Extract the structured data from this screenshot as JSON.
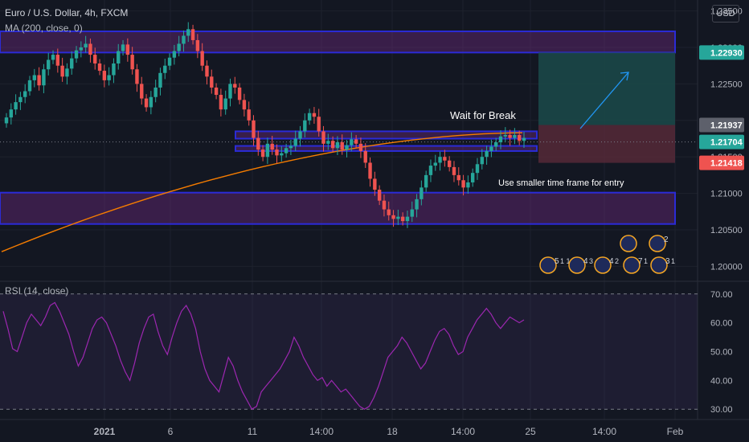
{
  "header": {
    "symbol": "Euro / U.S. Dollar, 4h, FXCM",
    "ma_label": "MA (200, close, 0)",
    "rsi_label": "RSI (14, close)",
    "currency": "USD"
  },
  "colors": {
    "background": "#131722",
    "up": "#26a69a",
    "down": "#ef5350",
    "ma": "#f57c00",
    "zone_fill": "#7a2a8a",
    "zone_border": "#2b2bd6",
    "rsi_line": "#9c27b0",
    "target_zone": "#1b4a4a",
    "stop_zone": "#5a2a3a",
    "arrow": "#2196f3"
  },
  "chart_data": [
    {
      "type": "candlestick",
      "title": "Euro / U.S. Dollar, 4h, FXCM",
      "y_ticks": [
        "1.23500",
        "1.23000",
        "1.22500",
        "1.22000",
        "1.21500",
        "1.21000",
        "1.20500",
        "1.20000"
      ],
      "y_range": [
        1.1985,
        1.2365
      ],
      "x_ticks": [
        "2021",
        "6",
        "11",
        "14:00",
        "18",
        "14:00",
        "25",
        "14:00",
        "Feb"
      ],
      "price_labels": [
        {
          "value": "1.22930",
          "price": 1.2293,
          "color": "#26a69a"
        },
        {
          "value": "1.21937",
          "price": 1.21937,
          "color": "#5d606b"
        },
        {
          "value": "1.21704",
          "price": 1.21704,
          "color": "#26a69a"
        },
        {
          "value": "1.21418",
          "price": 1.21418,
          "color": "#ef5350"
        }
      ],
      "zones": [
        {
          "from": 1.2293,
          "to": 1.2322
        },
        {
          "from": 1.2175,
          "to": 1.2185
        },
        {
          "from": 1.2158,
          "to": 1.2165
        },
        {
          "from": 1.2058,
          "to": 1.2101
        }
      ],
      "annotations": [
        "Wait for Break",
        "Use smaller time frame for entry"
      ],
      "close_series": [
        1.2204,
        1.2215,
        1.2225,
        1.2232,
        1.224,
        1.2255,
        1.2262,
        1.2248,
        1.227,
        1.2283,
        1.229,
        1.2275,
        1.226,
        1.2271,
        1.2285,
        1.2296,
        1.23,
        1.2305,
        1.229,
        1.2278,
        1.2268,
        1.2255,
        1.2262,
        1.2278,
        1.2295,
        1.2304,
        1.229,
        1.227,
        1.225,
        1.223,
        1.2218,
        1.2232,
        1.2245,
        1.2265,
        1.2275,
        1.2286,
        1.2295,
        1.2305,
        1.2316,
        1.2325,
        1.231,
        1.2295,
        1.2275,
        1.226,
        1.2245,
        1.2235,
        1.2215,
        1.223,
        1.225,
        1.2245,
        1.2228,
        1.2215,
        1.22,
        1.2176,
        1.216,
        1.215,
        1.2168,
        1.216,
        1.2152,
        1.2155,
        1.2162,
        1.2165,
        1.2175,
        1.2185,
        1.22,
        1.221,
        1.2205,
        1.2185,
        1.2168,
        1.2172,
        1.2162,
        1.217,
        1.216,
        1.2166,
        1.2174,
        1.2168,
        1.2158,
        1.2142,
        1.212,
        1.2105,
        1.209,
        1.2078,
        1.207,
        1.2065,
        1.2068,
        1.2062,
        1.2068,
        1.2078,
        1.2092,
        1.2108,
        1.2125,
        1.2138,
        1.2142,
        1.215,
        1.2145,
        1.2136,
        1.2125,
        1.2118,
        1.2108,
        1.2115,
        1.2128,
        1.214,
        1.215,
        1.2158,
        1.2164,
        1.217,
        1.2178,
        1.218,
        1.2176,
        1.218,
        1.2172,
        1.2176
      ],
      "ma_series": {
        "start": 1.202,
        "end": 1.2183
      },
      "events": [
        {
          "label": "5",
          "sub": "1 1"
        },
        {
          "label": "4",
          "sub": "3"
        },
        {
          "label": "4",
          "sub": "2"
        },
        {
          "label": "7",
          "sub": "1"
        },
        {
          "label": "3",
          "sub": "1"
        },
        {
          "label": "",
          "sub": ""
        },
        {
          "label": "2",
          "sub": ""
        }
      ]
    },
    {
      "type": "line",
      "title": "RSI (14, close)",
      "y_ticks": [
        "70.00",
        "60.00",
        "50.00",
        "40.00",
        "30.00"
      ],
      "y_range": [
        27,
        73
      ],
      "levels": [
        70,
        30
      ],
      "values": [
        64,
        58,
        51,
        50,
        55,
        60,
        63,
        61,
        59,
        62,
        66,
        67,
        64,
        60,
        56,
        50,
        45,
        48,
        53,
        58,
        61,
        62,
        60,
        56,
        52,
        47,
        43,
        40,
        46,
        53,
        58,
        62,
        63,
        57,
        52,
        49,
        55,
        60,
        64,
        66,
        63,
        58,
        50,
        44,
        40,
        38,
        36,
        42,
        48,
        45,
        40,
        36,
        33,
        30,
        31,
        36,
        38,
        40,
        42,
        44,
        47,
        50,
        55,
        52,
        48,
        45,
        42,
        40,
        41,
        38,
        40,
        38,
        36,
        37,
        35,
        33,
        31,
        30,
        31,
        34,
        38,
        43,
        48,
        50,
        52,
        55,
        53,
        50,
        47,
        44,
        46,
        50,
        54,
        57,
        58,
        56,
        52,
        49,
        50,
        55,
        58,
        61,
        63,
        65,
        63,
        60,
        58,
        60,
        62,
        61,
        60,
        61
      ]
    }
  ]
}
